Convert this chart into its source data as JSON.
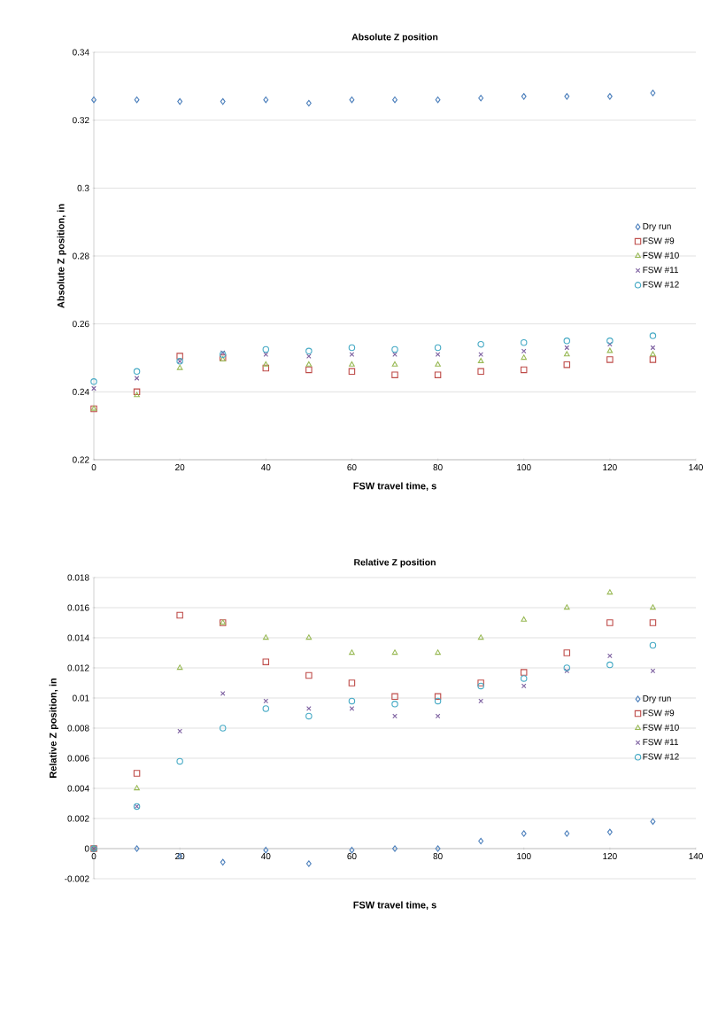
{
  "chart_data": [
    {
      "type": "scatter",
      "title": "Absolute Z position",
      "xlabel": "FSW travel time, s",
      "ylabel": "Absolute Z position, in",
      "x": [
        0,
        10,
        20,
        30,
        40,
        50,
        60,
        70,
        80,
        90,
        100,
        110,
        120,
        130
      ],
      "xlim": [
        0,
        140
      ],
      "xticks": [
        0,
        20,
        40,
        60,
        80,
        100,
        120,
        140
      ],
      "ylim": [
        0.22,
        0.34
      ],
      "yticks": [
        0.22,
        0.24,
        0.26,
        0.28,
        0.3,
        0.32,
        0.34
      ],
      "grid": "y",
      "legend": "right",
      "series": [
        {
          "name": "Dry run",
          "color": "#4a7ebb",
          "marker": "diamond",
          "values": [
            0.326,
            0.326,
            0.3255,
            0.3255,
            0.326,
            0.325,
            0.326,
            0.326,
            0.326,
            0.3265,
            0.327,
            0.327,
            0.327,
            0.328
          ]
        },
        {
          "name": "FSW #9",
          "color": "#be4b48",
          "marker": "square",
          "values": [
            0.235,
            0.24,
            0.2505,
            0.25,
            0.247,
            0.2465,
            0.246,
            0.245,
            0.245,
            0.246,
            0.2465,
            0.248,
            0.2495,
            0.2495
          ]
        },
        {
          "name": "FSW #10",
          "color": "#98b954",
          "marker": "triangle",
          "values": [
            0.235,
            0.239,
            0.247,
            0.2495,
            0.248,
            0.248,
            0.248,
            0.248,
            0.248,
            0.249,
            0.25,
            0.251,
            0.252,
            0.251
          ]
        },
        {
          "name": "FSW #11",
          "color": "#7d60a0",
          "marker": "cross",
          "values": [
            0.241,
            0.244,
            0.249,
            0.2515,
            0.251,
            0.2505,
            0.251,
            0.251,
            0.251,
            0.251,
            0.252,
            0.253,
            0.254,
            0.253
          ]
        },
        {
          "name": "FSW #12",
          "color": "#46aac5",
          "marker": "circle",
          "values": [
            0.243,
            0.246,
            0.249,
            0.251,
            0.2525,
            0.252,
            0.253,
            0.2525,
            0.253,
            0.254,
            0.2545,
            0.255,
            0.255,
            0.2565
          ]
        }
      ]
    },
    {
      "type": "scatter",
      "title": "Relative Z position",
      "xlabel": "FSW travel time, s",
      "ylabel": "Relative Z position, in",
      "x": [
        0,
        10,
        20,
        30,
        40,
        50,
        60,
        70,
        80,
        90,
        100,
        110,
        120,
        130
      ],
      "xlim": [
        0,
        140
      ],
      "xticks": [
        0,
        20,
        40,
        60,
        80,
        100,
        120,
        140
      ],
      "ylim": [
        -0.002,
        0.018
      ],
      "yticks": [
        -0.002,
        0,
        0.002,
        0.004,
        0.006,
        0.008,
        0.01,
        0.012,
        0.014,
        0.016,
        0.018
      ],
      "grid": "y",
      "legend": "right",
      "series": [
        {
          "name": "Dry run",
          "color": "#4a7ebb",
          "marker": "diamond",
          "values": [
            0,
            0,
            -0.0005,
            -0.0009,
            -0.0001,
            -0.001,
            -0.0001,
            0,
            0,
            0.0005,
            0.001,
            0.001,
            0.0011,
            0.0018
          ]
        },
        {
          "name": "FSW #9",
          "color": "#be4b48",
          "marker": "square",
          "values": [
            0,
            0.005,
            0.0155,
            0.015,
            0.0124,
            0.0115,
            0.011,
            0.0101,
            0.0101,
            0.011,
            0.0117,
            0.013,
            0.015,
            0.015
          ]
        },
        {
          "name": "FSW #10",
          "color": "#98b954",
          "marker": "triangle",
          "values": [
            0,
            0.004,
            0.012,
            0.015,
            0.014,
            0.014,
            0.013,
            0.013,
            0.013,
            0.014,
            0.0152,
            0.016,
            0.017,
            0.016
          ]
        },
        {
          "name": "FSW #11",
          "color": "#7d60a0",
          "marker": "cross",
          "values": [
            0,
            0.0028,
            0.0078,
            0.0103,
            0.0098,
            0.0093,
            0.0093,
            0.0088,
            0.0088,
            0.0098,
            0.0108,
            0.0118,
            0.0128,
            0.0118
          ]
        },
        {
          "name": "FSW #12",
          "color": "#46aac5",
          "marker": "circle",
          "values": [
            0,
            0.0028,
            0.0058,
            0.008,
            0.0093,
            0.0088,
            0.0098,
            0.0096,
            0.0098,
            0.0108,
            0.0113,
            0.012,
            0.0122,
            0.0135
          ]
        }
      ]
    }
  ]
}
